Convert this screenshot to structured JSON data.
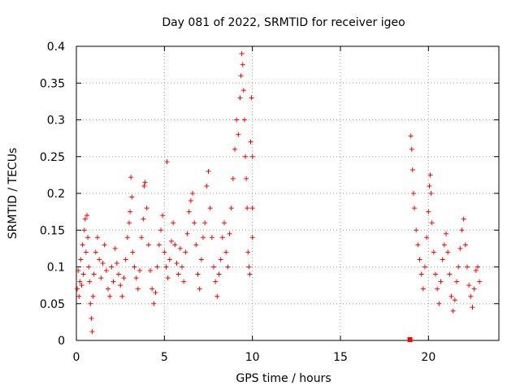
{
  "chart_data": {
    "type": "scatter",
    "title": "Day 081 of 2022, SRMTID for receiver igeo",
    "xlabel": "GPS time / hours",
    "ylabel": "SRMTID / TECUs",
    "xlim": [
      0,
      24
    ],
    "ylim": [
      0,
      0.4
    ],
    "x_ticks": [
      0,
      5,
      10,
      15,
      20
    ],
    "x_tick_labels": [
      "0",
      "5",
      "10",
      "15",
      "20"
    ],
    "y_ticks": [
      0,
      0.05,
      0.1,
      0.15,
      0.2,
      0.25,
      0.3,
      0.35,
      0.4
    ],
    "y_tick_labels": [
      "0",
      "0.05",
      "0.1",
      "0.15",
      "0.2",
      "0.25",
      "0.3",
      "0.35",
      "0.4"
    ],
    "grid": true,
    "marker": "+",
    "series_color": "#ff0000",
    "series": [
      {
        "name": "SRMTID",
        "points": [
          [
            0.05,
            0.07
          ],
          [
            0.1,
            0.095
          ],
          [
            0.15,
            0.06
          ],
          [
            0.2,
            0.08
          ],
          [
            0.25,
            0.11
          ],
          [
            0.3,
            0.075
          ],
          [
            0.35,
            0.13
          ],
          [
            0.4,
            0.09
          ],
          [
            0.45,
            0.15
          ],
          [
            0.5,
            0.165
          ],
          [
            0.55,
            0.12
          ],
          [
            0.6,
            0.17
          ],
          [
            0.65,
            0.14
          ],
          [
            0.7,
            0.1
          ],
          [
            0.75,
            0.08
          ],
          [
            0.8,
            0.05
          ],
          [
            0.85,
            0.03
          ],
          [
            0.9,
            0.012
          ],
          [
            0.95,
            0.06
          ],
          [
            1.0,
            0.09
          ],
          [
            1.1,
            0.12
          ],
          [
            1.2,
            0.14
          ],
          [
            1.3,
            0.11
          ],
          [
            1.4,
            0.085
          ],
          [
            1.5,
            0.105
          ],
          [
            1.6,
            0.13
          ],
          [
            1.7,
            0.095
          ],
          [
            1.8,
            0.07
          ],
          [
            1.9,
            0.06
          ],
          [
            2.0,
            0.1
          ],
          [
            2.1,
            0.08
          ],
          [
            2.2,
            0.125
          ],
          [
            2.3,
            0.105
          ],
          [
            2.4,
            0.09
          ],
          [
            2.5,
            0.075
          ],
          [
            2.6,
            0.06
          ],
          [
            2.7,
            0.085
          ],
          [
            2.8,
            0.11
          ],
          [
            2.9,
            0.14
          ],
          [
            3.0,
            0.16
          ],
          [
            3.05,
            0.175
          ],
          [
            3.1,
            0.222
          ],
          [
            3.15,
            0.195
          ],
          [
            3.2,
            0.12
          ],
          [
            3.3,
            0.1
          ],
          [
            3.4,
            0.085
          ],
          [
            3.5,
            0.07
          ],
          [
            3.6,
            0.095
          ],
          [
            3.7,
            0.14
          ],
          [
            3.8,
            0.165
          ],
          [
            3.85,
            0.21
          ],
          [
            3.9,
            0.215
          ],
          [
            4.0,
            0.18
          ],
          [
            4.1,
            0.13
          ],
          [
            4.2,
            0.095
          ],
          [
            4.3,
            0.07
          ],
          [
            4.4,
            0.05
          ],
          [
            4.5,
            0.065
          ],
          [
            4.6,
            0.1
          ],
          [
            4.7,
            0.13
          ],
          [
            4.8,
            0.15
          ],
          [
            4.9,
            0.17
          ],
          [
            5.0,
            0.12
          ],
          [
            5.1,
            0.1
          ],
          [
            5.15,
            0.243
          ],
          [
            5.2,
            0.085
          ],
          [
            5.3,
            0.11
          ],
          [
            5.4,
            0.135
          ],
          [
            5.5,
            0.16
          ],
          [
            5.6,
            0.13
          ],
          [
            5.7,
            0.105
          ],
          [
            5.8,
            0.09
          ],
          [
            5.9,
            0.125
          ],
          [
            6.0,
            0.1
          ],
          [
            6.1,
            0.08
          ],
          [
            6.2,
            0.12
          ],
          [
            6.3,
            0.145
          ],
          [
            6.4,
            0.175
          ],
          [
            6.5,
            0.19
          ],
          [
            6.6,
            0.2
          ],
          [
            6.7,
            0.16
          ],
          [
            6.8,
            0.13
          ],
          [
            6.9,
            0.09
          ],
          [
            7.0,
            0.07
          ],
          [
            7.1,
            0.11
          ],
          [
            7.2,
            0.14
          ],
          [
            7.3,
            0.16
          ],
          [
            7.4,
            0.21
          ],
          [
            7.5,
            0.23
          ],
          [
            7.6,
            0.18
          ],
          [
            7.7,
            0.14
          ],
          [
            7.8,
            0.1
          ],
          [
            7.9,
            0.08
          ],
          [
            8.0,
            0.06
          ],
          [
            8.1,
            0.09
          ],
          [
            8.2,
            0.11
          ],
          [
            8.3,
            0.14
          ],
          [
            8.4,
            0.16
          ],
          [
            8.5,
            0.12
          ],
          [
            8.6,
            0.1
          ],
          [
            8.7,
            0.145
          ],
          [
            8.8,
            0.18
          ],
          [
            8.9,
            0.22
          ],
          [
            9.0,
            0.26
          ],
          [
            9.1,
            0.3
          ],
          [
            9.2,
            0.28
          ],
          [
            9.3,
            0.33
          ],
          [
            9.35,
            0.36
          ],
          [
            9.4,
            0.39
          ],
          [
            9.45,
            0.375
          ],
          [
            9.5,
            0.34
          ],
          [
            9.55,
            0.3
          ],
          [
            9.6,
            0.25
          ],
          [
            9.65,
            0.22
          ],
          [
            9.7,
            0.18
          ],
          [
            9.75,
            0.12
          ],
          [
            9.8,
            0.1
          ],
          [
            9.85,
            0.09
          ],
          [
            9.9,
            0.27
          ],
          [
            9.95,
            0.33
          ],
          [
            10.0,
            0.25
          ],
          [
            10.0,
            0.18
          ],
          [
            10.0,
            0.14
          ],
          [
            19.0,
            0.278
          ],
          [
            19.05,
            0.26
          ],
          [
            19.1,
            0.232
          ],
          [
            19.15,
            0.2
          ],
          [
            19.2,
            0.18
          ],
          [
            19.3,
            0.15
          ],
          [
            19.4,
            0.13
          ],
          [
            19.5,
            0.11
          ],
          [
            19.6,
            0.09
          ],
          [
            19.7,
            0.07
          ],
          [
            19.8,
            0.1
          ],
          [
            19.9,
            0.14
          ],
          [
            20.0,
            0.175
          ],
          [
            20.05,
            0.21
          ],
          [
            20.1,
            0.225
          ],
          [
            20.15,
            0.2
          ],
          [
            20.2,
            0.16
          ],
          [
            20.3,
            0.12
          ],
          [
            20.4,
            0.09
          ],
          [
            20.5,
            0.07
          ],
          [
            20.6,
            0.05
          ],
          [
            20.7,
            0.08
          ],
          [
            20.8,
            0.11
          ],
          [
            20.9,
            0.13
          ],
          [
            21.0,
            0.145
          ],
          [
            21.1,
            0.12
          ],
          [
            21.2,
            0.09
          ],
          [
            21.3,
            0.06
          ],
          [
            21.4,
            0.04
          ],
          [
            21.5,
            0.055
          ],
          [
            21.6,
            0.08
          ],
          [
            21.7,
            0.1
          ],
          [
            21.8,
            0.125
          ],
          [
            21.9,
            0.15
          ],
          [
            22.0,
            0.165
          ],
          [
            22.1,
            0.13
          ],
          [
            22.2,
            0.1
          ],
          [
            22.3,
            0.075
          ],
          [
            22.4,
            0.06
          ],
          [
            22.5,
            0.045
          ],
          [
            22.6,
            0.07
          ],
          [
            22.7,
            0.095
          ],
          [
            22.8,
            0.1
          ],
          [
            22.9,
            0.08
          ]
        ]
      }
    ],
    "marker_square": {
      "x": 18.95,
      "y": 0.0
    }
  }
}
